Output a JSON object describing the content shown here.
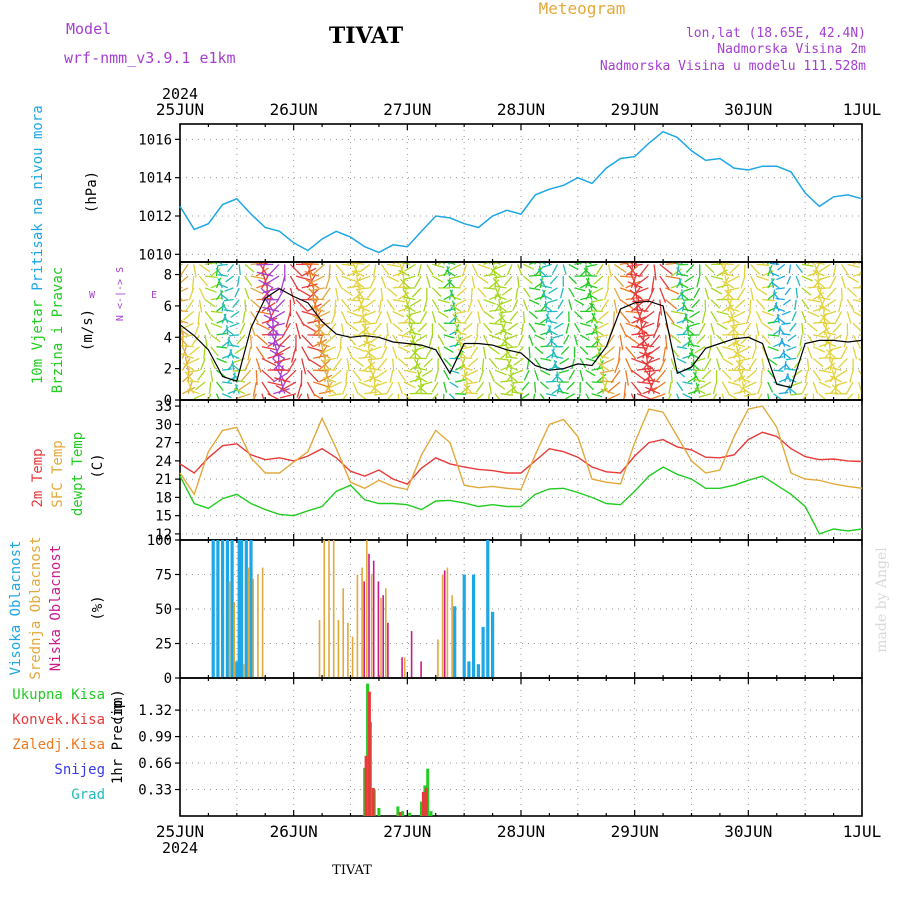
{
  "header": {
    "model_label": "Model",
    "model_name": "wrf-nmm_v3.9.1  e1km",
    "station": "TIVAT",
    "meteogram": "Meteogram",
    "lonlat": "lon,lat (18.65E, 42.4N)",
    "elevation": "Nadmorska Visina 2m",
    "model_elevation": "Nadmorska Visina u modelu 111.528m",
    "year_top": "2024",
    "year_bottom": "2024",
    "footer_station": "TIVAT",
    "credit": "made by Angel"
  },
  "days": [
    "25JUN",
    "26JUN",
    "27JUN",
    "28JUN",
    "29JUN",
    "30JUN",
    "1JUL"
  ],
  "colors": {
    "pressure": "#1ea7e6",
    "wind_speed": "#000000",
    "t2m": "#e83a3a",
    "tsfc": "#e2a93c",
    "dewpt": "#22cc22",
    "cloud_high": "#1ea7e6",
    "cloud_mid": "#e2a93c",
    "cloud_low": "#cc1a8c",
    "precip_total": "#22cc22",
    "precip_conv": "#e83a3a",
    "precip_grid": "#ee7a22",
    "precip_snow": "#3a3ae8",
    "precip_hail": "#22bbbb",
    "violet": "#a53fd1"
  },
  "chart_data": [
    {
      "type": "line",
      "panel": "pressure",
      "ylabel_main": "Pritisak na nivou mora",
      "unit": "(hPa)",
      "ylim": [
        1009.6,
        1016.8
      ],
      "yticks": [
        1010,
        1012,
        1014,
        1016
      ],
      "x_hours": [
        0,
        3,
        6,
        9,
        12,
        15,
        18,
        21,
        24,
        27,
        30,
        33,
        36,
        39,
        42,
        45,
        48,
        51,
        54,
        57,
        60,
        63,
        66,
        69,
        72,
        75,
        78,
        81,
        84,
        87,
        90,
        93,
        96,
        99,
        102,
        105,
        108,
        111,
        114,
        117,
        120,
        123,
        126,
        129,
        132,
        135,
        138,
        141,
        144
      ],
      "values": [
        1012.5,
        1011.3,
        1011.6,
        1012.6,
        1012.9,
        1012.1,
        1011.4,
        1011.2,
        1010.6,
        1010.2,
        1010.8,
        1011.2,
        1010.9,
        1010.4,
        1010.1,
        1010.5,
        1010.4,
        1011.2,
        1012.0,
        1011.9,
        1011.6,
        1011.4,
        1012.0,
        1012.3,
        1012.1,
        1013.1,
        1013.4,
        1013.6,
        1014.0,
        1013.7,
        1014.5,
        1015.0,
        1015.1,
        1015.8,
        1016.4,
        1016.1,
        1015.4,
        1014.9,
        1015.0,
        1014.5,
        1014.4,
        1014.6,
        1014.6,
        1014.3,
        1013.2,
        1012.5,
        1013.0,
        1013.1,
        1012.9
      ]
    },
    {
      "type": "line",
      "panel": "wind",
      "ylabel_main": "10m Vjetar",
      "ylabel_sub": "Brzina i Pravac",
      "unit": "(m/s)",
      "compass": "N <-|-> S",
      "compass_w": "W",
      "compass_e": "E",
      "ylim": [
        0,
        8.8
      ],
      "yticks": [
        0,
        2,
        4,
        6,
        8
      ],
      "x_hours": [
        0,
        3,
        6,
        9,
        12,
        15,
        18,
        21,
        24,
        27,
        30,
        33,
        36,
        39,
        42,
        45,
        48,
        51,
        54,
        57,
        60,
        63,
        66,
        69,
        72,
        75,
        78,
        81,
        84,
        87,
        90,
        93,
        96,
        99,
        102,
        105,
        108,
        111,
        114,
        117,
        120,
        123,
        126,
        129,
        132,
        135,
        138,
        141,
        144
      ],
      "values": [
        4.8,
        4.1,
        3.2,
        1.5,
        1.2,
        4.6,
        6.5,
        7.1,
        6.6,
        6.2,
        5.0,
        4.2,
        4.0,
        4.1,
        4.0,
        3.7,
        3.6,
        3.5,
        3.2,
        1.7,
        3.6,
        3.6,
        3.5,
        3.2,
        3.0,
        2.2,
        1.9,
        2.0,
        2.3,
        2.2,
        3.4,
        5.8,
        6.2,
        6.3,
        6.0,
        1.7,
        2.1,
        3.3,
        3.6,
        3.9,
        4.0,
        3.6,
        1.0,
        0.8,
        3.6,
        3.8,
        3.8,
        3.7,
        3.8
      ],
      "direction_palette": [
        "#3a3ae8",
        "#1ea7e6",
        "#22bbbb",
        "#22cc22",
        "#a6d81f",
        "#e2d23c",
        "#e2a93c",
        "#ee7a22",
        "#e83a3a",
        "#a53fd1"
      ]
    },
    {
      "type": "line",
      "panel": "temperature",
      "ylabel_main": "2m Temp",
      "ylabel_sub": "SFC Temp",
      "ylabel_sub2": "dewpt Temp",
      "unit": "(C)",
      "ylim": [
        11,
        34
      ],
      "yticks": [
        12,
        15,
        18,
        21,
        24,
        27,
        30,
        33
      ],
      "x_hours": [
        0,
        3,
        6,
        9,
        12,
        15,
        18,
        21,
        24,
        27,
        30,
        33,
        36,
        39,
        42,
        45,
        48,
        51,
        54,
        57,
        60,
        63,
        66,
        69,
        72,
        75,
        78,
        81,
        84,
        87,
        90,
        93,
        96,
        99,
        102,
        105,
        108,
        111,
        114,
        117,
        120,
        123,
        126,
        129,
        132,
        135,
        138,
        141,
        144
      ],
      "series": [
        {
          "name": "2m Temp",
          "key": "t2m",
          "values": [
            23.5,
            22.0,
            24.5,
            26.5,
            26.8,
            25.0,
            24.2,
            24.5,
            24.0,
            24.8,
            26.0,
            24.5,
            22.3,
            21.5,
            22.5,
            21.0,
            20.2,
            22.8,
            24.5,
            23.5,
            23.0,
            22.6,
            22.4,
            22.0,
            22.0,
            24.0,
            26.0,
            25.5,
            24.6,
            23.0,
            22.2,
            22.0,
            24.8,
            27.0,
            27.5,
            26.3,
            25.8,
            24.6,
            24.5,
            25.0,
            27.5,
            28.7,
            28.0,
            26.0,
            24.7,
            24.2,
            24.3,
            24.0,
            23.9
          ]
        },
        {
          "name": "SFC Temp",
          "key": "tsfc",
          "values": [
            22.0,
            18.5,
            25.5,
            29.0,
            29.5,
            24.5,
            22.0,
            22.0,
            23.8,
            25.5,
            31.0,
            26.0,
            20.5,
            19.5,
            20.8,
            19.8,
            19.3,
            25.0,
            29.0,
            27.0,
            20.0,
            19.6,
            19.8,
            19.5,
            19.3,
            25.0,
            30.0,
            30.8,
            28.0,
            21.0,
            20.5,
            20.2,
            27.0,
            32.5,
            32.0,
            28.0,
            24.0,
            22.0,
            22.5,
            28.0,
            32.5,
            33.0,
            29.5,
            22.0,
            21.0,
            20.8,
            20.2,
            19.8,
            19.5
          ]
        },
        {
          "name": "dewpt Temp",
          "key": "dewpt",
          "values": [
            21.5,
            17.0,
            16.2,
            17.8,
            18.5,
            17.0,
            16.0,
            15.2,
            15.0,
            15.8,
            16.5,
            19.0,
            20.0,
            17.6,
            17.0,
            17.0,
            16.8,
            16.0,
            17.4,
            17.5,
            17.1,
            16.5,
            16.8,
            16.5,
            16.5,
            18.5,
            19.4,
            19.5,
            18.8,
            18.0,
            17.0,
            16.8,
            19.0,
            21.5,
            23.0,
            21.8,
            21.0,
            19.5,
            19.5,
            20.0,
            20.8,
            21.5,
            20.0,
            18.5,
            16.5,
            12.0,
            12.8,
            12.5,
            12.8
          ]
        }
      ]
    },
    {
      "type": "bar",
      "panel": "clouds",
      "ylabel_main": "Visoka Oblacnost",
      "ylabel_sub": "Srednja Oblacnost",
      "ylabel_sub2": "Niska Oblacnost",
      "unit": "(%)",
      "ylim": [
        0,
        100
      ],
      "yticks": [
        0,
        25,
        50,
        75,
        100
      ],
      "series": [
        {
          "name": "Visoka Oblacnost",
          "key": "cloud_high",
          "bars": [
            [
              7,
              100
            ],
            [
              8,
              100
            ],
            [
              9,
              100
            ],
            [
              10,
              100
            ],
            [
              11,
              100
            ],
            [
              12,
              12
            ],
            [
              12.5,
              100
            ],
            [
              13,
              100
            ],
            [
              14,
              100
            ],
            [
              15,
              100
            ],
            [
              58,
              52
            ],
            [
              60,
              75
            ],
            [
              61,
              12
            ],
            [
              62,
              75
            ],
            [
              63,
              10
            ],
            [
              64,
              37
            ],
            [
              65,
              100
            ],
            [
              66,
              48
            ]
          ]
        },
        {
          "name": "Srednja Oblacnost",
          "key": "cloud_mid",
          "bars": [
            [
              10,
              70
            ],
            [
              11,
              55
            ],
            [
              13,
              10
            ],
            [
              14,
              80
            ],
            [
              15,
              72
            ],
            [
              16,
              75
            ],
            [
              17,
              80
            ],
            [
              29,
              42
            ],
            [
              30,
              100
            ],
            [
              31,
              100
            ],
            [
              32,
              100
            ],
            [
              33,
              42
            ],
            [
              34,
              65
            ],
            [
              35,
              40
            ],
            [
              36,
              30
            ],
            [
              37,
              75
            ],
            [
              38,
              80
            ],
            [
              39,
              100
            ],
            [
              40,
              75
            ],
            [
              42,
              58
            ],
            [
              43,
              65
            ],
            [
              47,
              15
            ],
            [
              54,
              28
            ],
            [
              55,
              75
            ],
            [
              56,
              80
            ],
            [
              57,
              60
            ]
          ]
        },
        {
          "name": "Niska Oblacnost",
          "key": "cloud_low",
          "bars": [
            [
              38,
              70
            ],
            [
              39,
              90
            ],
            [
              40,
              85
            ],
            [
              41,
              70
            ],
            [
              42,
              60
            ],
            [
              43,
              40
            ],
            [
              46,
              15
            ],
            [
              48,
              34
            ],
            [
              50,
              12
            ],
            [
              55,
              78
            ]
          ]
        }
      ]
    },
    {
      "type": "bar",
      "panel": "precip",
      "legend": [
        "Ukupna Kisa",
        "Konvek.Kisa",
        "Zaledj.Kisa",
        "Snijeg",
        "Grad"
      ],
      "ylabel_main": "1hr Precip",
      "unit": "(mm)",
      "ylim": [
        0,
        1.72
      ],
      "yticks": [
        0.33,
        0.66,
        0.99,
        1.32
      ],
      "series": [
        {
          "name": "Ukupna Kisa",
          "key": "precip_total",
          "bars": [
            [
              39,
              0.6
            ],
            [
              39.6,
              1.65
            ],
            [
              40.2,
              1.17
            ],
            [
              41,
              0.33
            ],
            [
              42,
              0.1
            ],
            [
              46,
              0.12
            ],
            [
              47,
              0.06
            ],
            [
              48.5,
              0.04
            ],
            [
              51,
              0.18
            ],
            [
              51.7,
              0.38
            ],
            [
              52.3,
              0.59
            ],
            [
              53,
              0.06
            ]
          ]
        },
        {
          "name": "Konvek.Kisa",
          "key": "precip_conv",
          "bars": [
            [
              39.3,
              0.75
            ],
            [
              40,
              1.55
            ],
            [
              40.8,
              0.35
            ],
            [
              46.5,
              0.05
            ],
            [
              51.4,
              0.3
            ],
            [
              52,
              0.35
            ]
          ]
        }
      ]
    }
  ]
}
